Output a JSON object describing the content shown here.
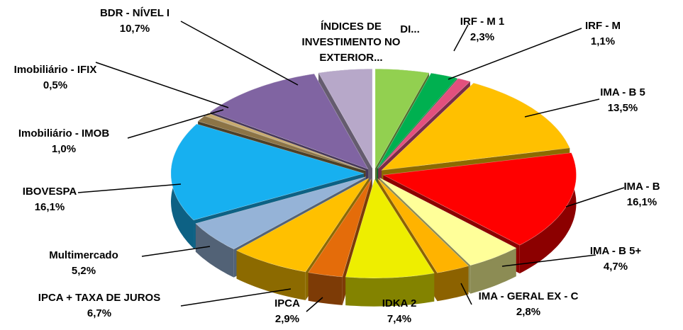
{
  "chart_data": {
    "type": "pie3d",
    "categories": [
      "DI...",
      "IRF - M 1",
      "IRF - M",
      "IMA - B 5",
      "IMA - B",
      "IMA - B 5+",
      "IMA - GERAL EX - C",
      "IDKA 2",
      "IPCA",
      "IPCA + TAXA DE JUROS",
      "Multimercado",
      "IBOVESPA",
      "Imobiliário - IMOB",
      "Imobiliário - IFIX",
      "BDR - NÍVEL I",
      "ÍNDICES DE\nINVESTIMENTO NO\nEXTERIOR..."
    ],
    "values": [
      4.5,
      2.3,
      1.1,
      13.5,
      16.1,
      4.7,
      2.8,
      7.4,
      2.9,
      6.7,
      5.2,
      16.1,
      1.0,
      0.5,
      10.7,
      4.5
    ],
    "value_labels": [
      null,
      "2,3%",
      "1,1%",
      "13,5%",
      "16,1%",
      "4,7%",
      "2,8%",
      "7,4%",
      "2,9%",
      "6,7%",
      "5,2%",
      "16,1%",
      "1,0%",
      "0,5%",
      "10,7%",
      null
    ],
    "colors": [
      "#92d050",
      "#00b050",
      "#e2507e",
      "#ffc000",
      "#ff0000",
      "#ffff99",
      "#ffb300",
      "#eeee00",
      "#e46c0a",
      "#ffc000",
      "#95b3d7",
      "#17b0f0",
      "#8c7446",
      "#c8aa6e",
      "#8064a2",
      "#b7a8c9"
    ]
  }
}
